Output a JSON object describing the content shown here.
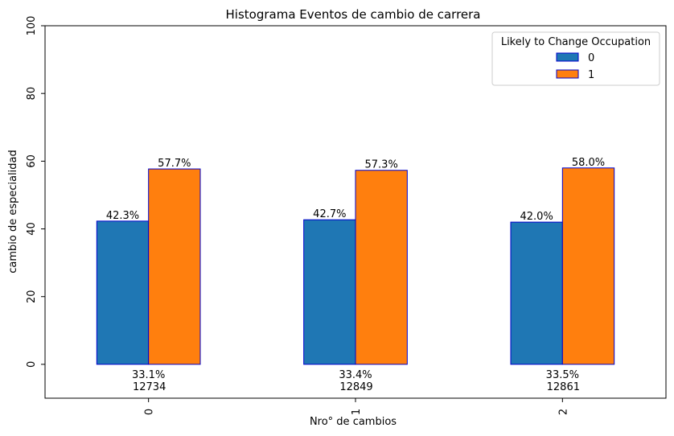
{
  "chart_data": {
    "type": "bar",
    "title": "Histograma Eventos de cambio de carrera",
    "xlabel": "Nro° de cambios",
    "ylabel": "cambio de especialidad",
    "categories": [
      "0",
      "1",
      "2"
    ],
    "ylim": [
      -10,
      100
    ],
    "yticks": [
      "0",
      "20",
      "40",
      "60",
      "80",
      "100"
    ],
    "grid": false,
    "legend": {
      "title": "Likely to Change Occupation",
      "placement": "top-right"
    },
    "series": [
      {
        "name": "0",
        "color": "#1f77b4",
        "values": [
          42.3,
          42.7,
          42.0
        ],
        "labels": [
          "42.3%",
          "42.7%",
          "42.0%"
        ]
      },
      {
        "name": "1",
        "color": "#ff7f0e",
        "values": [
          57.7,
          57.3,
          58.0
        ],
        "labels": [
          "57.7%",
          "57.3%",
          "58.0%"
        ]
      }
    ],
    "bar_edge_color": "#0000cc",
    "category_annotations": [
      {
        "percent": "33.1%",
        "count": "12734"
      },
      {
        "percent": "33.4%",
        "count": "12849"
      },
      {
        "percent": "33.5%",
        "count": "12861"
      }
    ]
  }
}
